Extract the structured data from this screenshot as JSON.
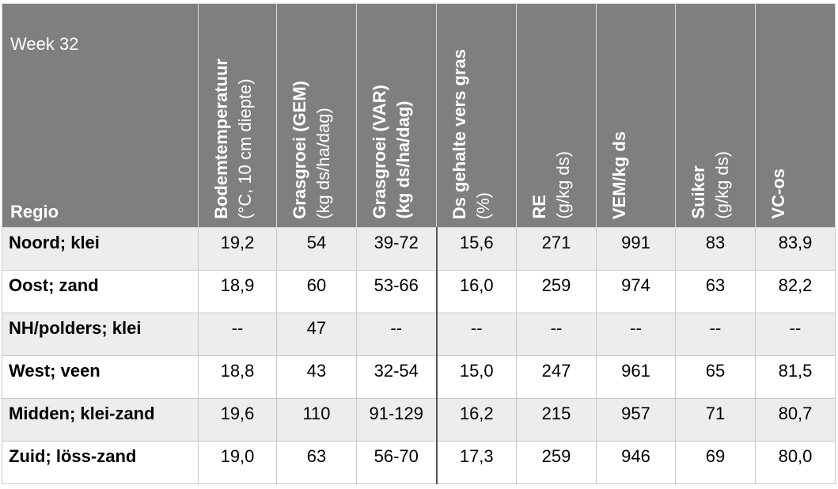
{
  "header": {
    "corner_top": "Week 32",
    "corner_bottom": "Regio",
    "columns": [
      {
        "title": "Bodemtemperatuur",
        "unit": "(°C, 10 cm diepte)"
      },
      {
        "title": "Grasgroei (GEM)",
        "unit": "(kg ds/ha/dag)"
      },
      {
        "title": "Grasgroei (VAR)",
        "unit": "(kg ds/ha/dag)"
      },
      {
        "title": "Ds gehalte vers gras",
        "unit": "(%)"
      },
      {
        "title": "RE",
        "unit": "(g/kg ds)"
      },
      {
        "title": "VEM/kg ds"
      },
      {
        "title": "Suiker",
        "unit": "(g/kg ds)"
      },
      {
        "title": "VC-os"
      }
    ]
  },
  "table": {
    "rows": [
      [
        "Noord; klei",
        "19,2",
        "54",
        "39-72",
        "15,6",
        "271",
        "991",
        "83",
        "83,9"
      ],
      [
        "Oost; zand",
        "18,9",
        "60",
        "53-66",
        "16,0",
        "259",
        "974",
        "63",
        "82,2"
      ],
      [
        "NH/polders; klei",
        "--",
        "47",
        "--",
        "--",
        "--",
        "--",
        "--",
        "--"
      ],
      [
        "West; veen",
        "18,8",
        "43",
        "32-54",
        "15,0",
        "247",
        "961",
        "65",
        "81,5"
      ],
      [
        "Midden; klei-zand",
        "19,6",
        "110",
        "91-129",
        "16,2",
        "215",
        "957",
        "71",
        "80,7"
      ],
      [
        "Zuid; löss-zand",
        "19,0",
        "63",
        "56-70",
        "17,3",
        "259",
        "946",
        "69",
        "80,0"
      ]
    ]
  }
}
